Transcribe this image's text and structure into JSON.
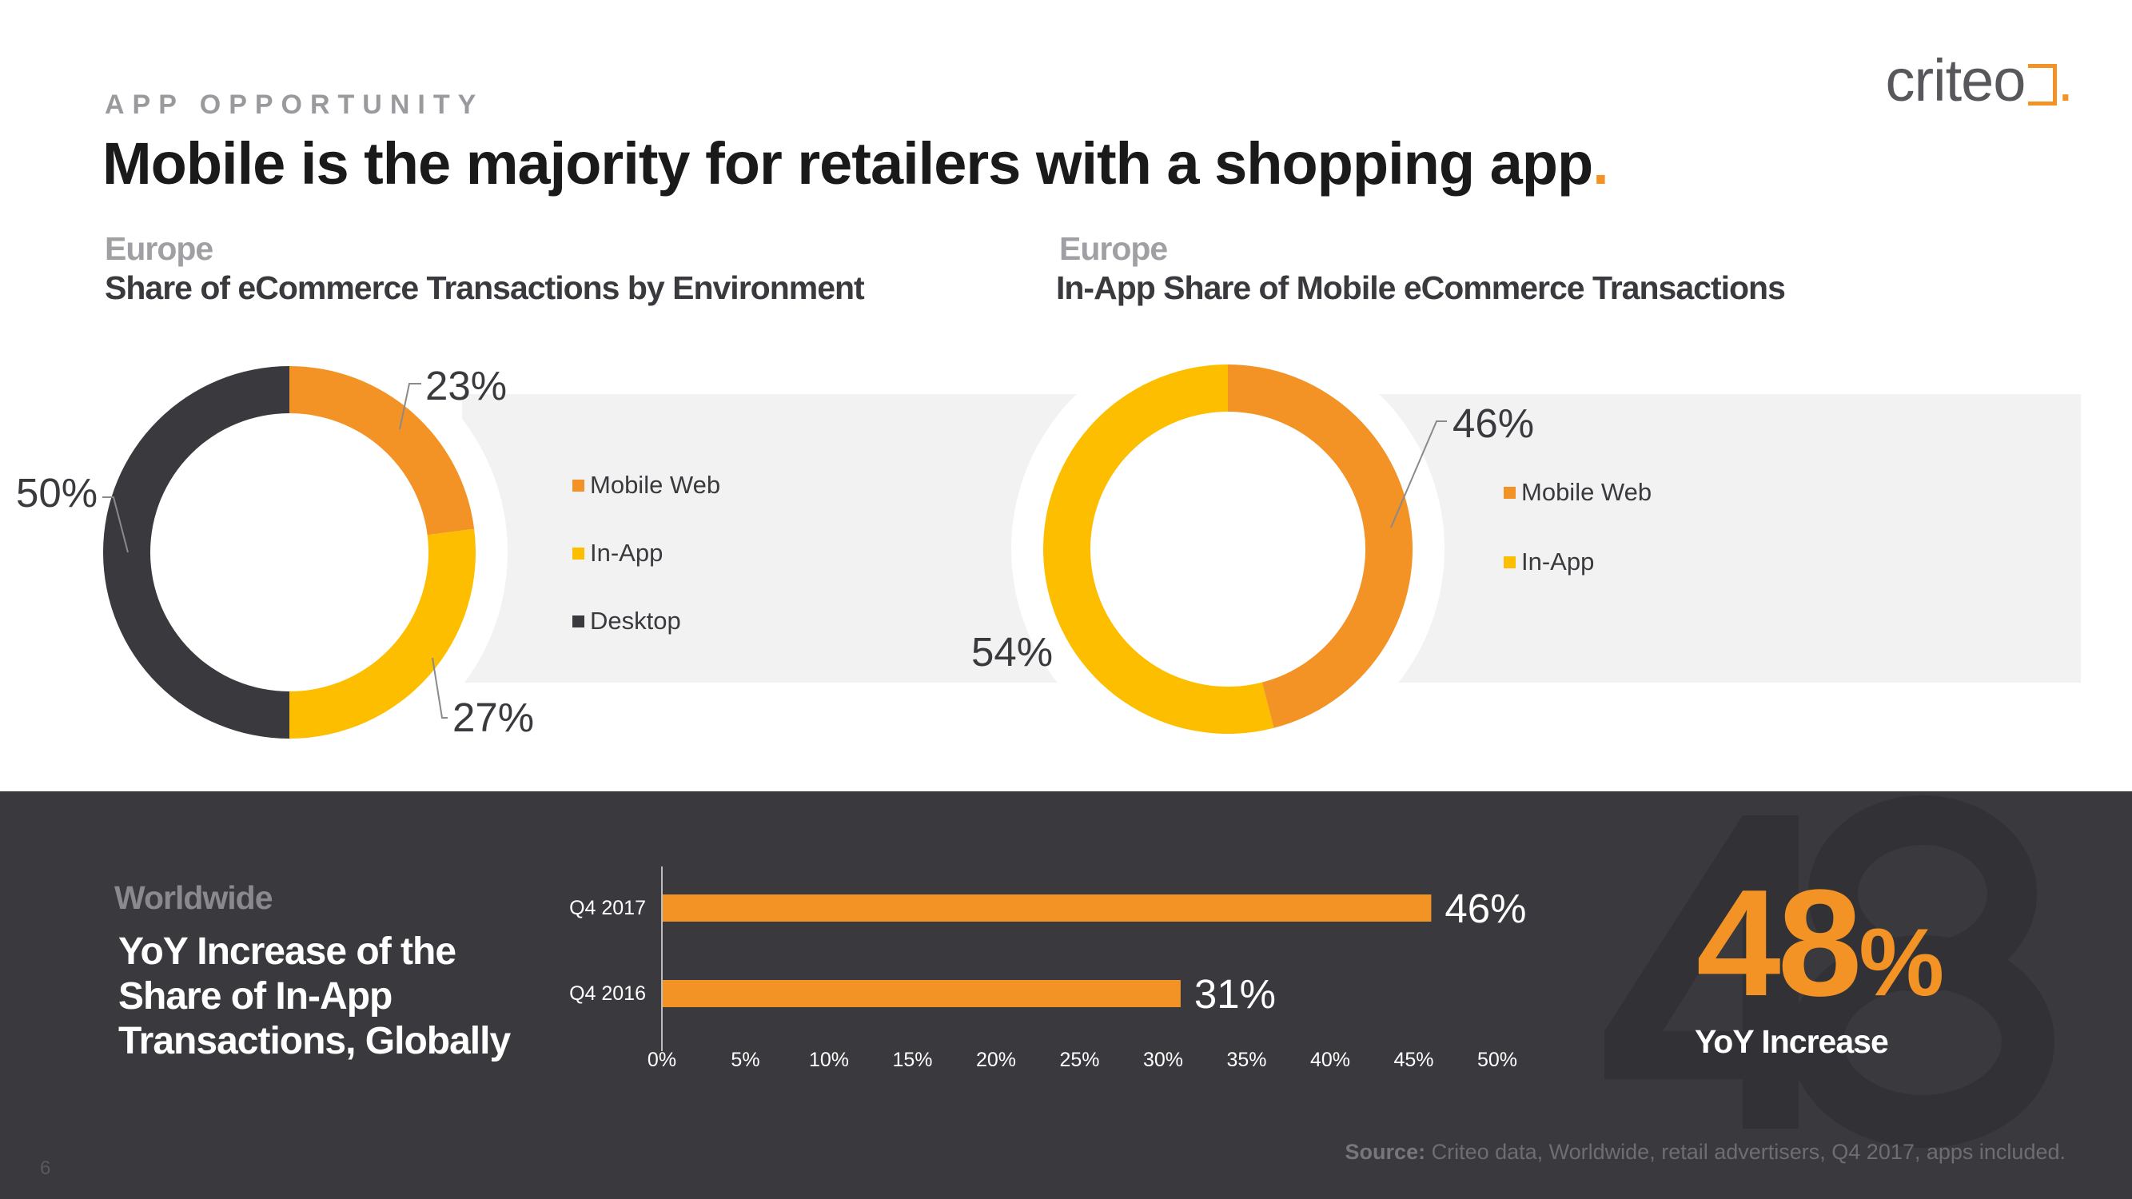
{
  "header": {
    "kicker": "APP OPPORTUNITY",
    "title": "Mobile is the majority for retailers with a shopping app",
    "title_dot": ".",
    "logo_text": "criteo",
    "logo_dot": "."
  },
  "colors": {
    "orange": "#F39325",
    "yellow": "#FDBE00",
    "dark": "#3A393E",
    "band": "#F2F2F2"
  },
  "chart_data": [
    {
      "type": "pie",
      "region": "Europe",
      "title": "Share of eCommerce Transactions by Environment",
      "labels": [
        "Mobile Web",
        "In-App",
        "Desktop"
      ],
      "values": [
        23,
        27,
        50
      ],
      "value_labels": [
        "23%",
        "27%",
        "50%"
      ],
      "colors": [
        "#F39325",
        "#FDBE00",
        "#3A393E"
      ],
      "legend": "right"
    },
    {
      "type": "pie",
      "region": "Europe",
      "title": "In-App Share of Mobile eCommerce Transactions",
      "labels": [
        "Mobile Web",
        "In-App"
      ],
      "values": [
        46,
        54
      ],
      "value_labels": [
        "46%",
        "54%"
      ],
      "colors": [
        "#F39325",
        "#FDBE00"
      ],
      "legend": "right"
    },
    {
      "type": "bar",
      "orientation": "horizontal",
      "region": "Worldwide",
      "title": "YoY Increase of the Share of In-App Transactions, Globally",
      "categories": [
        "Q4 2017",
        "Q4 2016"
      ],
      "values": [
        46,
        31
      ],
      "value_labels": [
        "46%",
        "31%"
      ],
      "xlim": [
        0,
        50
      ],
      "xticks": [
        "0%",
        "5%",
        "10%",
        "15%",
        "20%",
        "25%",
        "30%",
        "35%",
        "40%",
        "45%",
        "50%"
      ]
    }
  ],
  "highlight": {
    "background_number": "48",
    "value": "48",
    "unit": "%",
    "label": "YoY Increase"
  },
  "footer": {
    "source_label": "Source:",
    "source_text": " Criteo data, Worldwide, retail advertisers, Q4 2017, apps included.",
    "page_number": "6"
  }
}
